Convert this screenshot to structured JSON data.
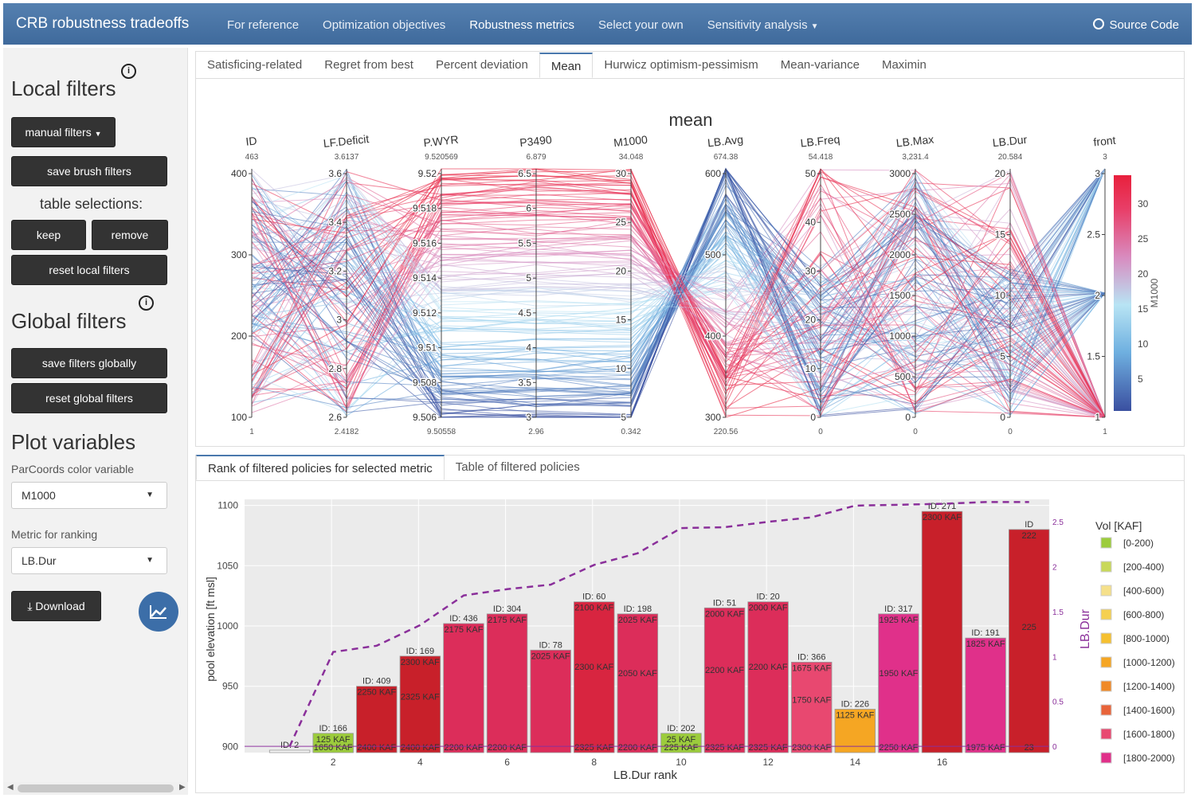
{
  "navbar": {
    "brand": "CRB robustness tradeoffs",
    "items": [
      "For reference",
      "Optimization objectives",
      "Robustness metrics",
      "Select your own",
      "Sensitivity analysis"
    ],
    "source_code": "Source Code"
  },
  "sidebar": {
    "local_filters": "Local filters",
    "manual_filters": "manual filters",
    "save_brush": "save brush filters",
    "table_selections": "table selections:",
    "keep": "keep",
    "remove": "remove",
    "reset_local": "reset local filters",
    "global_filters": "Global filters",
    "save_global": "save filters globally",
    "reset_global": "reset global filters",
    "plot_variables": "Plot variables",
    "color_label": "ParCoords color variable",
    "color_value": "M1000",
    "rank_label": "Metric for ranking",
    "rank_value": "LB.Dur",
    "download": "Download"
  },
  "metric_tabs": [
    "Satisficing-related",
    "Regret from best",
    "Percent deviation",
    "Mean",
    "Hurwicz optimism-pessimism",
    "Mean-variance",
    "Maximin"
  ],
  "active_metric_tab": "Mean",
  "parcoords": {
    "title": "mean",
    "axes": [
      {
        "name": "ID",
        "max": "463",
        "min": "1",
        "ticks": [
          "400",
          "300",
          "200",
          "100"
        ]
      },
      {
        "name": "LF.Deficit",
        "max": "3.6137",
        "min": "2.4182",
        "ticks": [
          "3.6",
          "3.4",
          "3.2",
          "3",
          "2.8",
          "2.6"
        ]
      },
      {
        "name": "P.WYR",
        "max": "9.520569",
        "min": "9.50558",
        "ticks": [
          "9.52",
          "9.518",
          "9.516",
          "9.514",
          "9.512",
          "9.51",
          "9.508",
          "9.506"
        ]
      },
      {
        "name": "P3490",
        "max": "6.879",
        "min": "2.96",
        "ticks": [
          "6.5",
          "6",
          "5.5",
          "5",
          "4.5",
          "4",
          "3.5",
          "3"
        ]
      },
      {
        "name": "M1000",
        "max": "34.048",
        "min": "0.342",
        "ticks": [
          "30",
          "25",
          "20",
          "15",
          "10",
          "5"
        ]
      },
      {
        "name": "LB.Avg",
        "max": "674.38",
        "min": "220.56",
        "ticks": [
          "600",
          "500",
          "400",
          "300"
        ]
      },
      {
        "name": "LB.Freq",
        "max": "54.418",
        "min": "0",
        "ticks": [
          "50",
          "40",
          "30",
          "20",
          "10",
          "0"
        ]
      },
      {
        "name": "LB.Max",
        "max": "3,231.4",
        "min": "0",
        "ticks": [
          "3000",
          "2500",
          "2000",
          "1500",
          "1000",
          "500",
          "0"
        ]
      },
      {
        "name": "LB.Dur",
        "max": "20.584",
        "min": "0",
        "ticks": [
          "20",
          "15",
          "10",
          "5",
          "0"
        ]
      },
      {
        "name": "front",
        "max": "3",
        "min": "1",
        "ticks": [
          "3",
          "2.5",
          "2",
          "1.5",
          "1"
        ]
      }
    ],
    "colorbar": {
      "title": "M1000",
      "ticks": [
        "30",
        "25",
        "20",
        "15",
        "10",
        "5"
      ]
    }
  },
  "bottom_tabs": [
    "Rank of filtered policies for selected metric",
    "Table of filtered policies"
  ],
  "chart_data": {
    "type": "bar",
    "xlabel": "LB.Dur rank",
    "ylabel": "pool elevation [ft msl]",
    "y2label": "LB.Dur",
    "ylim": [
      895,
      1105
    ],
    "xticks": [
      "2",
      "4",
      "6",
      "8",
      "10",
      "12",
      "14",
      "16"
    ],
    "yticks": [
      "1100",
      "1050",
      "1000",
      "950",
      "900"
    ],
    "y2ticks": [
      "2.5",
      "2",
      "1.5",
      "1",
      "0.5",
      "0"
    ],
    "bars": [
      {
        "rank": 1,
        "id": "ID: 2",
        "top": 897,
        "color": "#f5f5f5",
        "labels": []
      },
      {
        "rank": 2,
        "id": "ID: 166",
        "top": 911,
        "color": "#9ccc3c",
        "labels": [
          "125 KAF",
          "1650 KAF"
        ]
      },
      {
        "rank": 3,
        "id": "ID: 409",
        "top": 950,
        "color": "#c8202a",
        "labels": [
          "2250 KAF",
          "2400 KAF"
        ]
      },
      {
        "rank": 4,
        "id": "ID: 169",
        "top": 975,
        "color": "#c8202a",
        "labels": [
          "2300 KAF",
          "2325 KAF",
          "2400 KAF"
        ]
      },
      {
        "rank": 5,
        "id": "ID: 436",
        "top": 1002,
        "color": "#dc2d5a",
        "labels": [
          "2175 KAF",
          "2200 KAF"
        ]
      },
      {
        "rank": 6,
        "id": "ID: 304",
        "top": 1010,
        "color": "#dc2d5a",
        "labels": [
          "2175 KAF",
          "2200 KAF"
        ]
      },
      {
        "rank": 7,
        "id": "ID: 78",
        "top": 980,
        "color": "#dc2d5a",
        "labels": [
          "2025 KAF"
        ]
      },
      {
        "rank": 8,
        "id": "ID: 60",
        "top": 1020,
        "color": "#d82540",
        "labels": [
          "2100 KAF",
          "2300 KAF",
          "2325 KAF"
        ]
      },
      {
        "rank": 9,
        "id": "ID: 198",
        "top": 1010,
        "color": "#dc2d5a",
        "labels": [
          "2025 KAF",
          "2050 KAF",
          "2200 KAF"
        ]
      },
      {
        "rank": 10,
        "id": "ID: 202",
        "top": 911,
        "color": "#9ccc3c",
        "labels": [
          "25 KAF",
          "225 KAF"
        ]
      },
      {
        "rank": 11,
        "id": "ID: 51",
        "top": 1015,
        "color": "#dc2d5a",
        "labels": [
          "2000 KAF",
          "2200 KAF",
          "2325 KAF"
        ]
      },
      {
        "rank": 12,
        "id": "ID: 20",
        "top": 1020,
        "color": "#dc2d5a",
        "labels": [
          "2000 KAF",
          "2200 KAF",
          "2325 KAF"
        ]
      },
      {
        "rank": 13,
        "id": "ID: 366",
        "top": 970,
        "color": "#e84870",
        "labels": [
          "1675 KAF",
          "1750 KAF",
          "2300 KAF"
        ]
      },
      {
        "rank": 14,
        "id": "ID: 226",
        "top": 931,
        "color": "#f5a623",
        "labels": [
          "1125 KAF"
        ]
      },
      {
        "rank": 15,
        "id": "ID: 317",
        "top": 1010,
        "color": "#e0308a",
        "labels": [
          "1925 KAF",
          "1950 KAF",
          "2250 KAF"
        ]
      },
      {
        "rank": 16,
        "id": "ID: 271",
        "top": 1095,
        "color": "#c8202a",
        "labels": [
          "2300 KAF"
        ]
      },
      {
        "rank": 17,
        "id": "ID: 191",
        "top": 990,
        "color": "#e0308a",
        "labels": [
          "1825 KAF",
          "1975 KAF"
        ]
      },
      {
        "rank": 18,
        "id": "ID",
        "top": 1080,
        "color": "#c8202a",
        "labels": [
          "222",
          "225",
          "23"
        ]
      }
    ],
    "lbdur_line": [
      0.0,
      1.05,
      1.12,
      1.35,
      1.68,
      1.75,
      1.8,
      2.02,
      2.15,
      2.43,
      2.44,
      2.5,
      2.55,
      2.68,
      2.69,
      2.7,
      2.72,
      2.72
    ],
    "legend": {
      "title": "Vol [KAF]",
      "items": [
        {
          "label": "[0-200)",
          "color": "#9ccc3c"
        },
        {
          "label": "[200-400)",
          "color": "#c8d85a"
        },
        {
          "label": "[400-600)",
          "color": "#f5e08a"
        },
        {
          "label": "[600-800)",
          "color": "#f5d050"
        },
        {
          "label": "[800-1000)",
          "color": "#f5c030"
        },
        {
          "label": "[1000-1200)",
          "color": "#f5a623"
        },
        {
          "label": "[1200-1400)",
          "color": "#f08a28"
        },
        {
          "label": "[1400-1600)",
          "color": "#e8643a"
        },
        {
          "label": "[1600-1800)",
          "color": "#e84870"
        },
        {
          "label": "[1800-2000)",
          "color": "#e0308a"
        }
      ]
    }
  },
  "colors": {
    "navbar": "#4a76a8",
    "accent_red": "#e8203c",
    "accent_blue": "#3a4fa0"
  }
}
